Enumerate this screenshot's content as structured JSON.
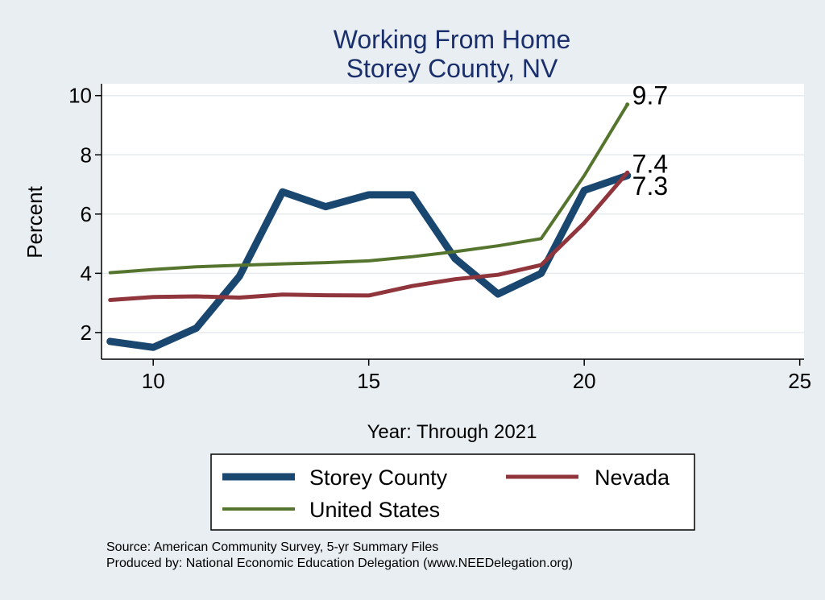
{
  "chart_data": {
    "type": "line",
    "title": "Working From Home",
    "subtitle": "Storey County, NV",
    "xlabel": "Year: Through 2021",
    "ylabel": "Percent",
    "xlim": [
      8.8,
      25.1
    ],
    "ylim": [
      1.1,
      10.4
    ],
    "xticks": [
      10,
      15,
      20,
      25
    ],
    "yticks": [
      2,
      4,
      6,
      8,
      10
    ],
    "grid": true,
    "legend_position": "bottom",
    "x": [
      9,
      10,
      11,
      12,
      13,
      14,
      15,
      16,
      17,
      18,
      19,
      20,
      21
    ],
    "series": [
      {
        "name": "Storey County",
        "color": "#1a476f",
        "width": 9,
        "values": [
          1.7,
          1.5,
          2.15,
          3.9,
          6.75,
          6.25,
          6.65,
          6.65,
          4.5,
          3.3,
          4.0,
          6.8,
          7.3
        ],
        "end_label": "7.3"
      },
      {
        "name": "Nevada",
        "color": "#90353b",
        "width": 5,
        "values": [
          3.1,
          3.2,
          3.22,
          3.18,
          3.28,
          3.26,
          3.25,
          3.57,
          3.8,
          3.95,
          4.28,
          5.7,
          7.4
        ],
        "end_label": "7.4"
      },
      {
        "name": "United States",
        "color": "#55752f",
        "width": 4,
        "values": [
          4.02,
          4.13,
          4.22,
          4.27,
          4.32,
          4.36,
          4.42,
          4.56,
          4.73,
          4.93,
          5.17,
          7.3,
          9.7
        ],
        "end_label": "9.7"
      }
    ]
  },
  "source": {
    "line1": "Source: American Community Survey, 5-yr Summary Files",
    "line2": "Produced by: National Economic Education Delegation (www.NEEDelegation.org)"
  }
}
